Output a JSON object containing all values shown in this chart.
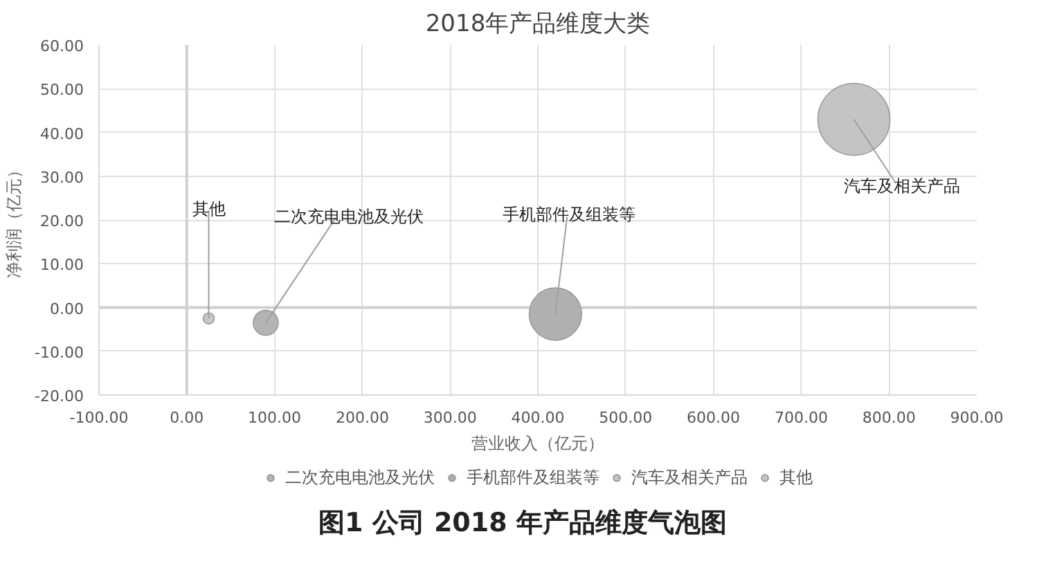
{
  "chart_data": {
    "type": "bubble",
    "title": "2018年产品维度大类",
    "xlabel": "营业收入（亿元）",
    "ylabel": "净利润（亿元）",
    "xlim": [
      -100,
      900
    ],
    "ylim": [
      -20,
      60
    ],
    "xticks": [
      {
        "value": -100,
        "label": "-100.00"
      },
      {
        "value": 0,
        "label": "0.00"
      },
      {
        "value": 100,
        "label": "100.00"
      },
      {
        "value": 200,
        "label": "200.00"
      },
      {
        "value": 300,
        "label": "300.00"
      },
      {
        "value": 400,
        "label": "400.00"
      },
      {
        "value": 500,
        "label": "500.00"
      },
      {
        "value": 600,
        "label": "600.00"
      },
      {
        "value": 700,
        "label": "700.00"
      },
      {
        "value": 800,
        "label": "800.00"
      },
      {
        "value": 900,
        "label": "900.00"
      }
    ],
    "yticks": [
      {
        "value": -20,
        "label": "-20.00"
      },
      {
        "value": -10,
        "label": "-10.00"
      },
      {
        "value": 0,
        "label": "0.00"
      },
      {
        "value": 10,
        "label": "10.00"
      },
      {
        "value": 20,
        "label": "20.00"
      },
      {
        "value": 30,
        "label": "30.00"
      },
      {
        "value": 40,
        "label": "40.00"
      },
      {
        "value": 50,
        "label": "50.00"
      },
      {
        "value": 60,
        "label": "60.00"
      }
    ],
    "grid": true,
    "legend": "bottom",
    "series": [
      {
        "name": "二次充电电池及光伏",
        "color": "#b4b4b4",
        "x": [
          90
        ],
        "values": [
          -3.5
        ],
        "sizes": [
          0.12
        ]
      },
      {
        "name": "手机部件及组装等",
        "color": "#b0b0b0",
        "x": [
          420
        ],
        "values": [
          -1.5
        ],
        "sizes": [
          0.53
        ]
      },
      {
        "name": "汽车及相关产品",
        "color": "#c4c4c4",
        "x": [
          760
        ],
        "values": [
          43
        ],
        "sizes": [
          1
        ]
      },
      {
        "name": "其他",
        "color": "#c8c8c8",
        "x": [
          25
        ],
        "values": [
          -2.5
        ],
        "sizes": [
          0.024
        ]
      }
    ],
    "annotations": [
      "图1 公司 2018 年产品维度气泡图"
    ]
  }
}
